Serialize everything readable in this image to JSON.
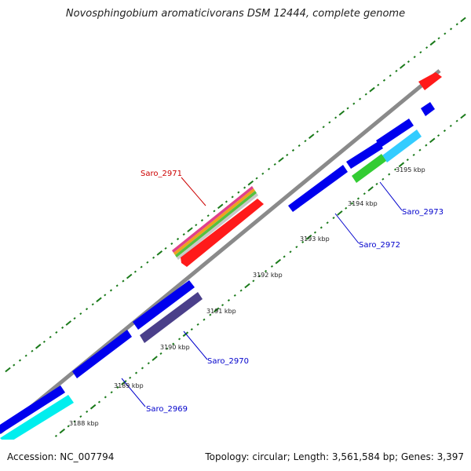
{
  "title": "Novosphingobium aromaticivorans DSM 12444, complete genome",
  "footer": {
    "accession": "Accession: NC_007794",
    "summary": "Topology: circular; Length: 3,561,584 bp; Genes: 3,397"
  },
  "kbp_labels": [
    "3188 kbp",
    "3189 kbp",
    "3190 kbp",
    "3191 kbp",
    "3192 kbp",
    "3193 kbp",
    "3194 kbp",
    "3195 kbp"
  ],
  "gene_labels": [
    {
      "text": "Saro_2971",
      "color": "#cc0000"
    },
    {
      "text": "Saro_2972",
      "color": "#0000cc"
    },
    {
      "text": "Saro_2973",
      "color": "#0000cc"
    },
    {
      "text": "Saro_2970",
      "color": "#0000cc"
    },
    {
      "text": "Saro_2969",
      "color": "#0000cc"
    }
  ],
  "colors": {
    "backbone": "#8a8a8a",
    "tick": "#1a7a1a",
    "forward_gene": "#ff0000",
    "reverse_gene": "#0000ee",
    "cyan_gene": "#00eeee",
    "light_blue_gene": "#33ccff",
    "green_gene": "#33cc33",
    "slate_gene": "#4a3f8a"
  }
}
